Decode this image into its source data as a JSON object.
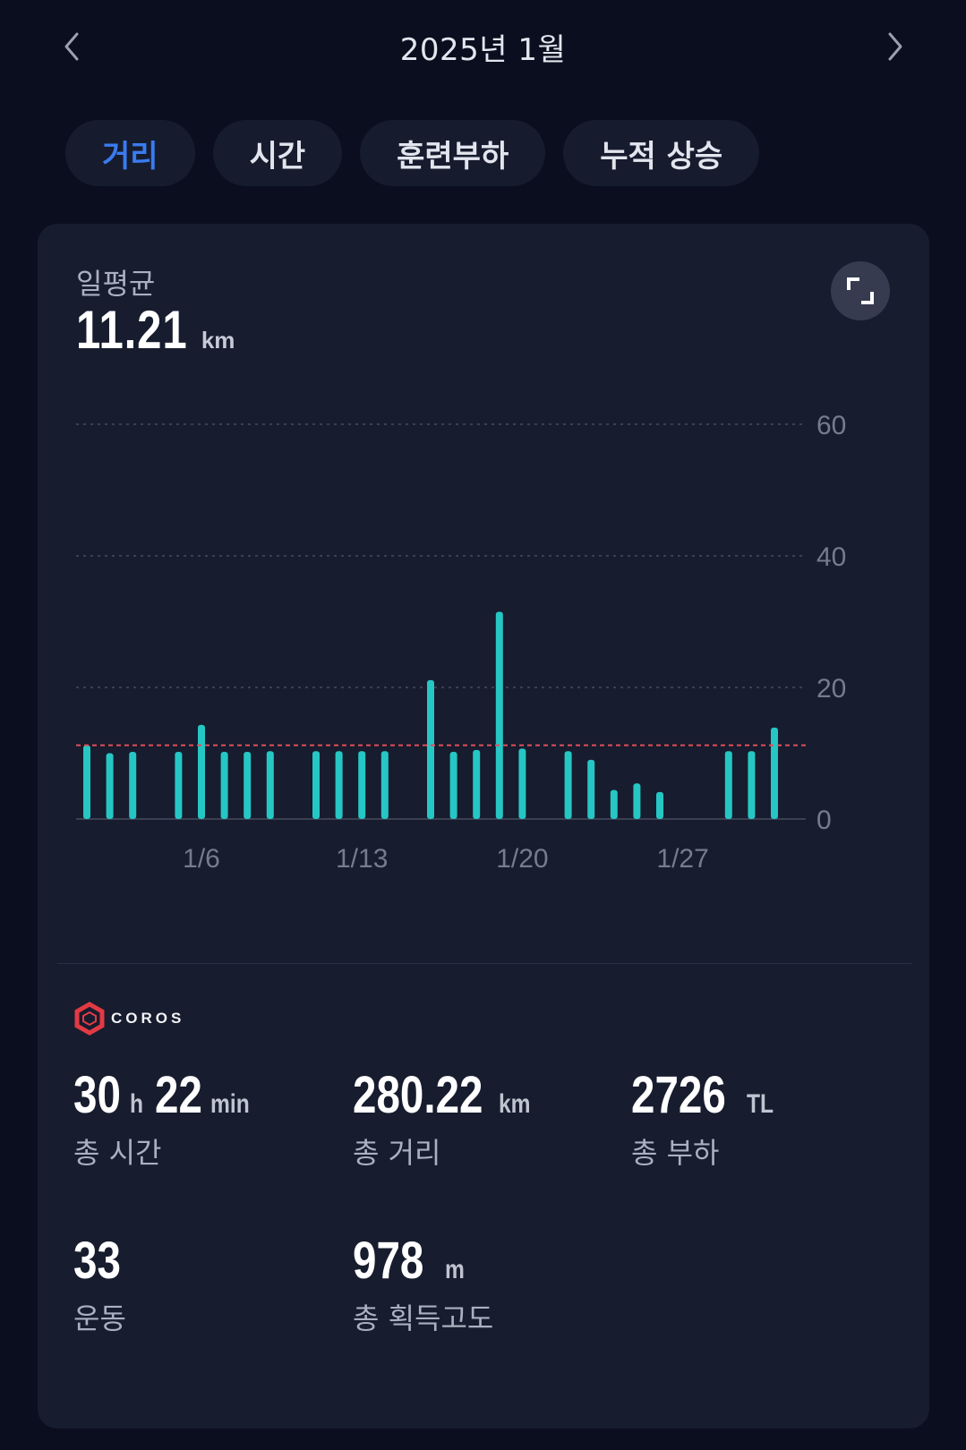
{
  "header": {
    "title": "2025년 1월",
    "prev_icon": "chevron-left-icon",
    "next_icon": "chevron-right-icon"
  },
  "tabs": [
    {
      "label": "거리",
      "active": true
    },
    {
      "label": "시간",
      "active": false
    },
    {
      "label": "훈련부하",
      "active": false
    },
    {
      "label": "누적 상승",
      "active": false
    }
  ],
  "summary": {
    "label": "일평균",
    "value": "11.21",
    "unit": "km",
    "expand_icon": "expand-icon"
  },
  "colors": {
    "background": "#0a0e1f",
    "card": "#171c2e",
    "tab_active": "#3a7bf0",
    "bar": "#26c6c4",
    "average_line": "#e0505a",
    "brand": "#e23a44"
  },
  "chart_data": {
    "type": "bar",
    "x_ticks": [
      "1/6",
      "1/13",
      "1/20",
      "1/27"
    ],
    "y_ticks": [
      0,
      20,
      40,
      60
    ],
    "ylim": [
      0,
      60
    ],
    "grid": true,
    "average_line": 11.21,
    "days": [
      1,
      2,
      3,
      4,
      5,
      6,
      7,
      8,
      9,
      10,
      11,
      12,
      13,
      14,
      15,
      16,
      17,
      18,
      19,
      20,
      21,
      22,
      23,
      24,
      25,
      26,
      27,
      28,
      29,
      30,
      31
    ],
    "values": [
      11.2,
      10.0,
      10.2,
      0,
      10.2,
      14.3,
      10.2,
      10.2,
      10.3,
      0,
      10.3,
      10.3,
      10.3,
      10.3,
      0,
      21.1,
      10.2,
      10.5,
      31.5,
      10.7,
      0,
      10.3,
      9.0,
      4.4,
      5.4,
      4.1,
      0,
      0,
      10.3,
      10.3,
      13.9
    ]
  },
  "brand": {
    "name": "COROS",
    "logo_icon": "coros-logo-icon"
  },
  "stats": {
    "time": {
      "hours": "30",
      "h_unit": "h",
      "minutes": "22",
      "min_unit": "min",
      "label": "총 시간"
    },
    "distance": {
      "value": "280.22",
      "unit": "km",
      "label": "총 거리"
    },
    "load": {
      "value": "2726",
      "unit": "TL",
      "label": "총 부하"
    },
    "workouts": {
      "value": "33",
      "label": "운동"
    },
    "elevation": {
      "value": "978",
      "unit": "m",
      "label": "총 획득고도"
    }
  }
}
